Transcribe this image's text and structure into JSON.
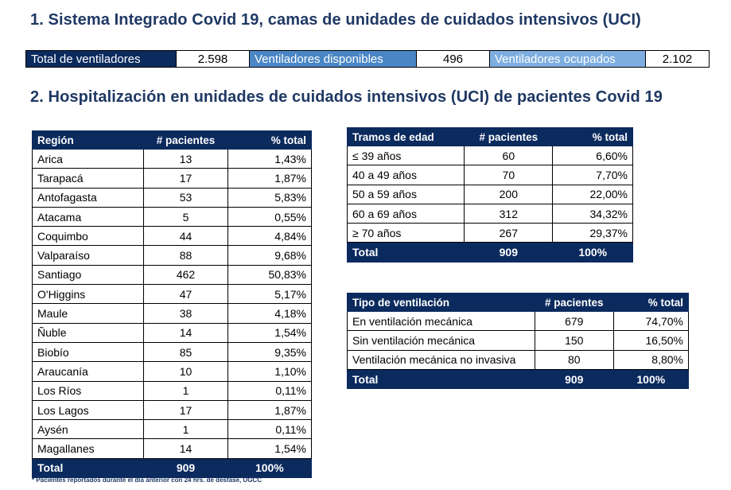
{
  "section1_title": "1. Sistema Integrado Covid 19, camas de unidades de cuidados intensivos (UCI)",
  "ventilators": {
    "total_label": "Total de ventiladores",
    "total_value": "2.598",
    "available_label": "Ventiladores disponibles",
    "available_value": "496",
    "occupied_label": "Ventiladores ocupados",
    "occupied_value": "2.102"
  },
  "section2_title": "2. Hospitalización en unidades de cuidados intensivos (UCI) de pacientes Covid 19",
  "region_table": {
    "headers": [
      "Región",
      "# pacientes",
      "% total"
    ],
    "rows": [
      [
        "Arica",
        "13",
        "1,43%"
      ],
      [
        "Tarapacá",
        "17",
        "1,87%"
      ],
      [
        "Antofagasta",
        "53",
        "5,83%"
      ],
      [
        "Atacama",
        "5",
        "0,55%"
      ],
      [
        "Coquimbo",
        "44",
        "4,84%"
      ],
      [
        "Valparaíso",
        "88",
        "9,68%"
      ],
      [
        "Santiago",
        "462",
        "50,83%"
      ],
      [
        "O'Higgins",
        "47",
        "5,17%"
      ],
      [
        "Maule",
        "38",
        "4,18%"
      ],
      [
        "Ñuble",
        "14",
        "1,54%"
      ],
      [
        "Biobío",
        "85",
        "9,35%"
      ],
      [
        "Araucanía",
        "10",
        "1,10%"
      ],
      [
        "Los Ríos",
        "1",
        "0,11%"
      ],
      [
        "Los Lagos",
        "17",
        "1,87%"
      ],
      [
        "Aysén",
        "1",
        "0,11%"
      ],
      [
        "Magallanes",
        "14",
        "1,54%"
      ]
    ],
    "total": [
      "Total",
      "909",
      "100%"
    ]
  },
  "age_table": {
    "headers": [
      "Tramos de edad",
      "# pacientes",
      "% total"
    ],
    "rows": [
      [
        "≤ 39 años",
        "60",
        "6,60%"
      ],
      [
        "40 a 49 años",
        "70",
        "7,70%"
      ],
      [
        "50 a 59 años",
        "200",
        "22,00%"
      ],
      [
        "60 a 69 años",
        "312",
        "34,32%"
      ],
      [
        "≥ 70 años",
        "267",
        "29,37%"
      ]
    ],
    "total": [
      "Total",
      "909",
      "100%"
    ]
  },
  "vent_table": {
    "headers": [
      "Tipo de ventilación",
      "# pacientes",
      "% total"
    ],
    "rows": [
      [
        "En ventilación mecánica",
        "679",
        "74,70%"
      ],
      [
        "Sin ventilación mecánica",
        "150",
        "16,50%"
      ],
      [
        "Ventilación mecánica no invasiva",
        "80",
        "8,80%"
      ]
    ],
    "total": [
      "Total",
      "909",
      "100%"
    ]
  },
  "footnote": "* Pacientes reportados durante el día anterior con 24 hrs. de desfase, UGCC",
  "colors": {
    "header_navy": "#0b2a5e",
    "title_blue": "#1f3864",
    "mid_blue": "#4a86c5",
    "light_blue": "#7eaee0"
  }
}
